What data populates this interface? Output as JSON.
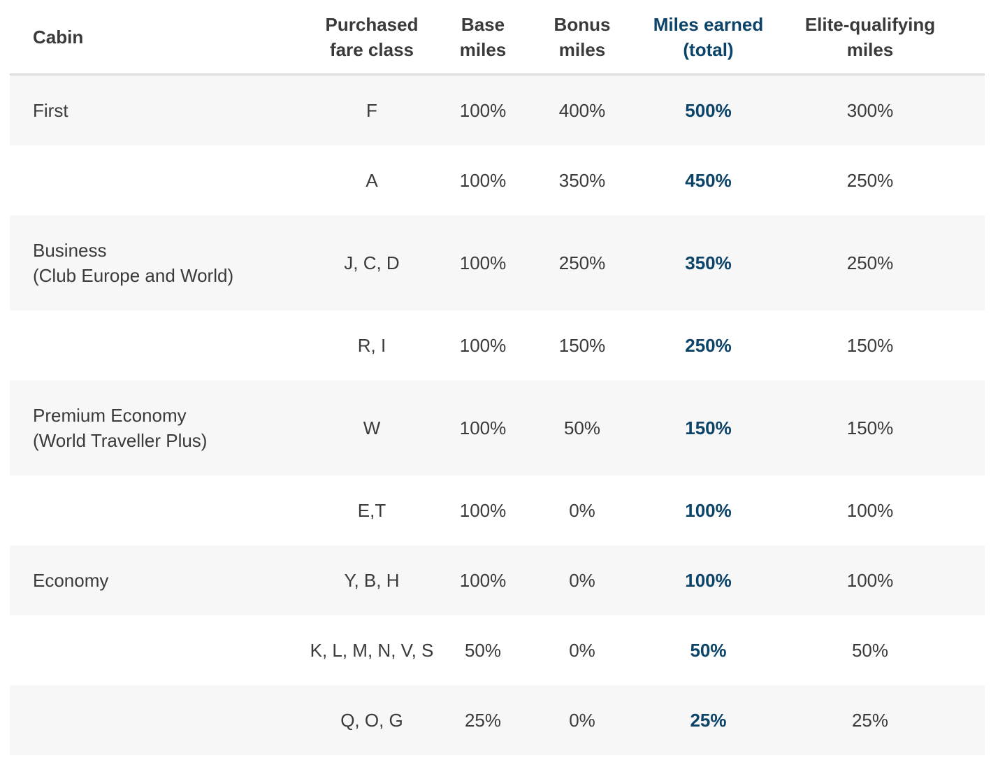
{
  "colors": {
    "accent": "#0b4369",
    "text": "#3a3a3a",
    "row_shade": "#f7f7f7",
    "header_rule": "#dcdcdc"
  },
  "table": {
    "headers": {
      "cabin": "Cabin",
      "fare_class": "Purchased\nfare class",
      "base_miles": "Base\nmiles",
      "bonus_miles": "Bonus\nmiles",
      "miles_earned": "Miles earned\n(total)",
      "eqm": "Elite-qualifying\nmiles"
    },
    "rows": [
      {
        "cabin": "First",
        "fare_class": "F",
        "base": "100%",
        "bonus": "400%",
        "total": "500%",
        "eqm": "300%"
      },
      {
        "cabin": "",
        "fare_class": "A",
        "base": "100%",
        "bonus": "350%",
        "total": "450%",
        "eqm": "250%"
      },
      {
        "cabin": "Business\n(Club Europe and World)",
        "fare_class": "J, C, D",
        "base": "100%",
        "bonus": "250%",
        "total": "350%",
        "eqm": "250%"
      },
      {
        "cabin": "",
        "fare_class": "R, I",
        "base": "100%",
        "bonus": "150%",
        "total": "250%",
        "eqm": "150%"
      },
      {
        "cabin": "Premium Economy\n(World Traveller Plus)",
        "fare_class": "W",
        "base": "100%",
        "bonus": "50%",
        "total": "150%",
        "eqm": "150%"
      },
      {
        "cabin": "",
        "fare_class": "E,T",
        "base": "100%",
        "bonus": "0%",
        "total": "100%",
        "eqm": "100%"
      },
      {
        "cabin": "Economy",
        "fare_class": "Y, B, H",
        "base": "100%",
        "bonus": "0%",
        "total": "100%",
        "eqm": "100%"
      },
      {
        "cabin": "",
        "fare_class": "K, L, M, N, V, S",
        "base": "50%",
        "bonus": "0%",
        "total": "50%",
        "eqm": "50%"
      },
      {
        "cabin": "",
        "fare_class": "Q, O, G",
        "base": "25%",
        "bonus": "0%",
        "total": "25%",
        "eqm": "25%"
      }
    ]
  }
}
